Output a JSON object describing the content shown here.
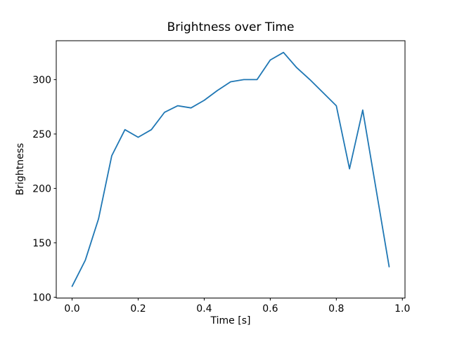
{
  "figure": {
    "background": "#ffffff",
    "text_color": "#000000"
  },
  "chart_data": {
    "type": "line",
    "title": "Brightness over Time",
    "xlabel": "Time [s]",
    "ylabel": "Brightness",
    "x": [
      0.0,
      0.04,
      0.08,
      0.12,
      0.16,
      0.2,
      0.24,
      0.28,
      0.32,
      0.36,
      0.4,
      0.44,
      0.48,
      0.52,
      0.56,
      0.6,
      0.64,
      0.68,
      0.72,
      0.76,
      0.8,
      0.84,
      0.88,
      0.92,
      0.96
    ],
    "y": [
      110,
      134,
      172,
      230,
      254,
      247,
      254,
      270,
      276,
      274,
      281,
      290,
      298,
      300,
      300,
      318,
      325,
      311,
      300,
      288,
      276,
      218,
      272,
      200,
      128
    ],
    "line_color": "#1f77b4",
    "spine_color": "#000000",
    "xlim": [
      -0.048,
      1.008
    ],
    "ylim": [
      99.25,
      335.75
    ],
    "xticks": [
      0.0,
      0.2,
      0.4,
      0.6,
      0.8,
      1.0
    ],
    "xtick_labels": [
      "0.0",
      "0.2",
      "0.4",
      "0.6",
      "0.8",
      "1.0"
    ],
    "yticks": [
      100,
      150,
      200,
      250,
      300
    ],
    "ytick_labels": [
      "100",
      "150",
      "200",
      "250",
      "300"
    ],
    "grid": false,
    "legend": null
  }
}
